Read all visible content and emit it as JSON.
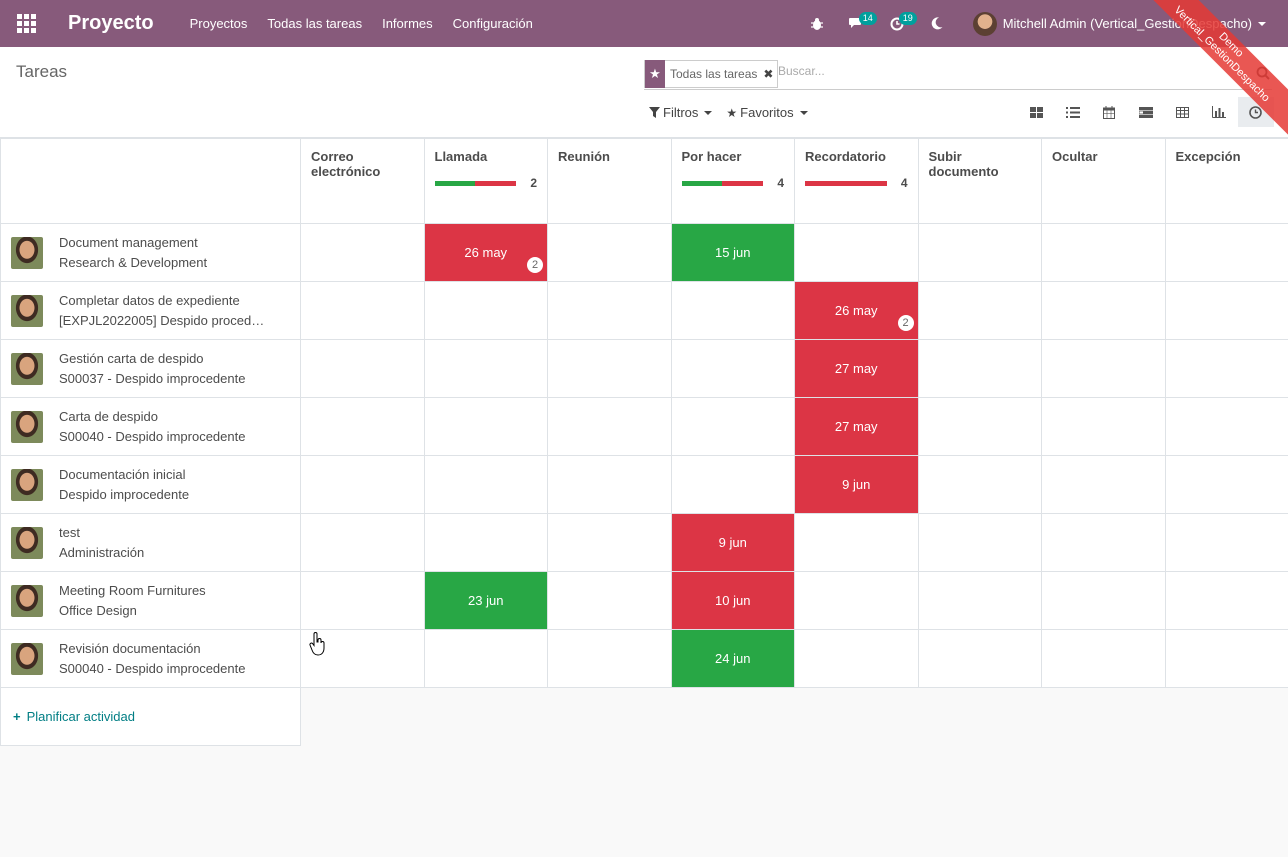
{
  "navbar": {
    "brand": "Proyecto",
    "menu": [
      "Proyectos",
      "Todas las tareas",
      "Informes",
      "Configuración"
    ],
    "bug_icon": "bug-icon",
    "messages_badge": "14",
    "activities_badge": "19",
    "user_name": "Mitchell Admin (Vertical_GestionDespacho)",
    "accent_color": "#875a7b"
  },
  "ribbon": {
    "line1": "Demo",
    "line2": "Vertical_GestionDespacho"
  },
  "control": {
    "breadcrumb": "Tareas",
    "facet_label": "Todas las tareas",
    "search_placeholder": "Buscar...",
    "filters_label": "Filtros",
    "favorites_label": "Favoritos",
    "views": [
      "kanban",
      "list",
      "calendar",
      "gantt",
      "pivot",
      "graph",
      "activity"
    ],
    "active_view": "activity"
  },
  "table": {
    "columns": [
      {
        "name": "Correo electrónico",
        "green": 0,
        "red": 0,
        "count": ""
      },
      {
        "name": "Llamada",
        "green": 0.5,
        "red": 0.5,
        "count": "2"
      },
      {
        "name": "Reunión",
        "green": 0,
        "red": 0,
        "count": ""
      },
      {
        "name": "Por hacer",
        "green": 0.5,
        "red": 0.5,
        "count": "4"
      },
      {
        "name": "Recordatorio",
        "green": 0,
        "red": 1,
        "count": "4"
      },
      {
        "name": "Subir documento",
        "green": 0,
        "red": 0,
        "count": ""
      },
      {
        "name": "Ocultar",
        "green": 0,
        "red": 0,
        "count": ""
      },
      {
        "name": "Excepción",
        "green": 0,
        "red": 0,
        "count": ""
      }
    ],
    "rows": [
      {
        "title": "Document management",
        "subtitle": "Research & Development",
        "cells": {
          "1": {
            "date": "26 may",
            "state": "red",
            "count": "2"
          },
          "3": {
            "date": "15 jun",
            "state": "green"
          }
        }
      },
      {
        "title": "Completar datos de expediente",
        "subtitle": "[EXPJL2022005] Despido proced…",
        "cells": {
          "4": {
            "date": "26 may",
            "state": "red",
            "count": "2"
          }
        }
      },
      {
        "title": "Gestión carta de despido",
        "subtitle": "S00037 - Despido improcedente",
        "cells": {
          "4": {
            "date": "27 may",
            "state": "red"
          }
        }
      },
      {
        "title": "Carta de despido",
        "subtitle": "S00040 - Despido improcedente",
        "cells": {
          "4": {
            "date": "27 may",
            "state": "red"
          }
        }
      },
      {
        "title": "Documentación inicial",
        "subtitle": "Despido improcedente",
        "cells": {
          "4": {
            "date": "9 jun",
            "state": "red"
          }
        }
      },
      {
        "title": "test",
        "subtitle": "Administración",
        "cells": {
          "3": {
            "date": "9 jun",
            "state": "red"
          }
        }
      },
      {
        "title": "Meeting Room Furnitures",
        "subtitle": "Office Design",
        "cells": {
          "1": {
            "date": "23 jun",
            "state": "green"
          },
          "3": {
            "date": "10 jun",
            "state": "red"
          }
        }
      },
      {
        "title": "Revisión documentación",
        "subtitle": "S00040 - Despido improcedente",
        "cells": {
          "3": {
            "date": "24 jun",
            "state": "green"
          }
        }
      }
    ],
    "add_label": "Planificar actividad"
  }
}
